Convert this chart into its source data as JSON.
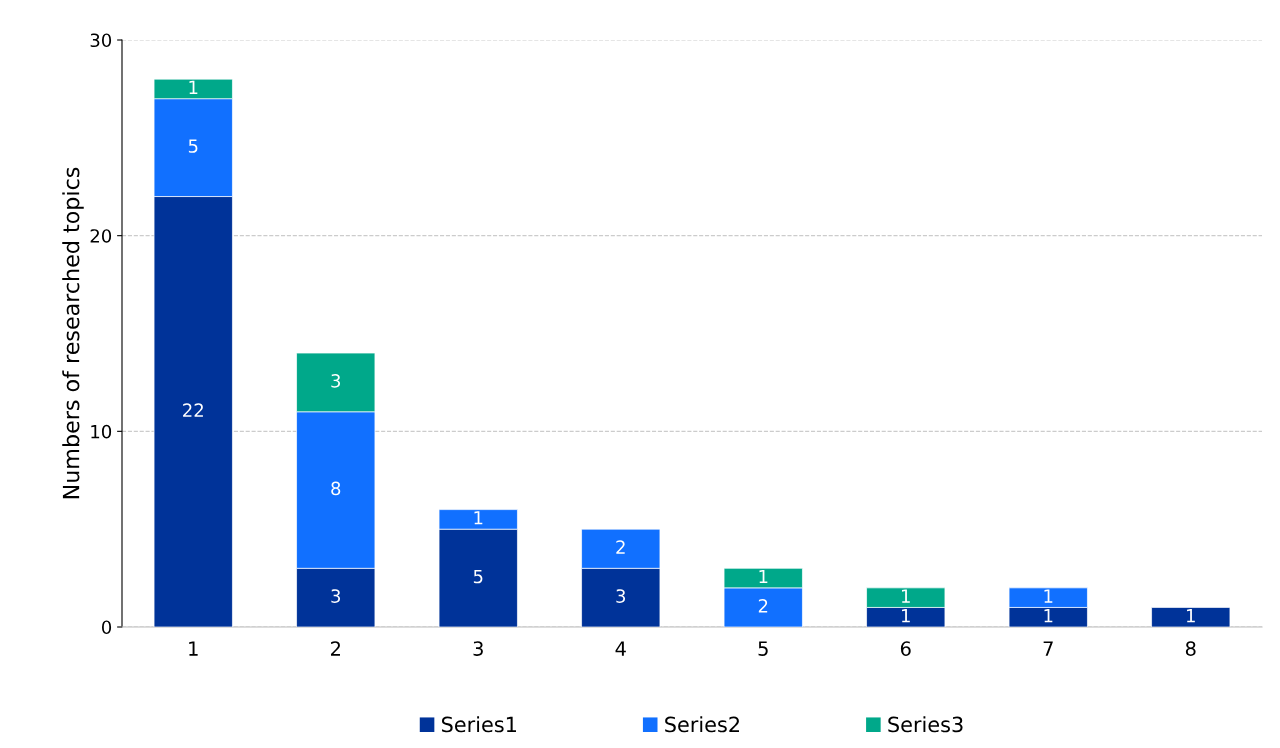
{
  "chart_data": {
    "type": "bar",
    "stacked": true,
    "ylabel": "Numbers of researched topics",
    "categories": [
      "1",
      "2",
      "3",
      "4",
      "5",
      "6",
      "7",
      "8"
    ],
    "series": [
      {
        "name": "Series1",
        "color": "#003399",
        "values": [
          22,
          3,
          5,
          3,
          null,
          1,
          1,
          1
        ]
      },
      {
        "name": "Series2",
        "color": "#1170ff",
        "values": [
          5,
          8,
          1,
          2,
          2,
          null,
          1,
          null
        ]
      },
      {
        "name": "Series3",
        "color": "#00a88a",
        "values": [
          1,
          3,
          null,
          null,
          1,
          1,
          null,
          null
        ]
      }
    ],
    "ylim": [
      0,
      30
    ],
    "yticks": [
      0,
      10,
      20,
      30
    ],
    "grid": "y",
    "legend": "bottom",
    "data_labels": true
  }
}
